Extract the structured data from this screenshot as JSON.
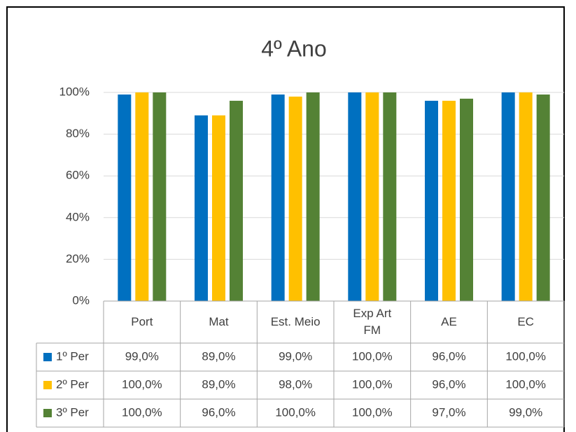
{
  "chart_data": {
    "type": "bar",
    "title": "4º Ano",
    "categories": [
      "Port",
      "Mat",
      "Est. Meio",
      "Exp Art FM",
      "AE",
      "EC"
    ],
    "series": [
      {
        "name": "1º Per",
        "color": "#0070c0",
        "values": [
          99,
          89,
          99,
          100,
          96,
          100
        ],
        "value_labels": [
          "99,0%",
          "89,0%",
          "99,0%",
          "100,0%",
          "96,0%",
          "100,0%"
        ]
      },
      {
        "name": "2º Per",
        "color": "#ffc000",
        "values": [
          100,
          89,
          98,
          100,
          96,
          100
        ],
        "value_labels": [
          "100,0%",
          "89,0%",
          "98,0%",
          "100,0%",
          "96,0%",
          "100,0%"
        ]
      },
      {
        "name": "3º Per",
        "color": "#548235",
        "values": [
          100,
          96,
          100,
          100,
          97,
          99
        ],
        "value_labels": [
          "100,0%",
          "96,0%",
          "100,0%",
          "100,0%",
          "97,0%",
          "99,0%"
        ]
      }
    ],
    "ylim": [
      0,
      100
    ],
    "yticks": [
      {
        "value": 0,
        "label": "0%"
      },
      {
        "value": 20,
        "label": "20%"
      },
      {
        "value": 40,
        "label": "40%"
      },
      {
        "value": 60,
        "label": "60%"
      },
      {
        "value": 80,
        "label": "80%"
      },
      {
        "value": 100,
        "label": "100%"
      }
    ],
    "grid": true
  }
}
